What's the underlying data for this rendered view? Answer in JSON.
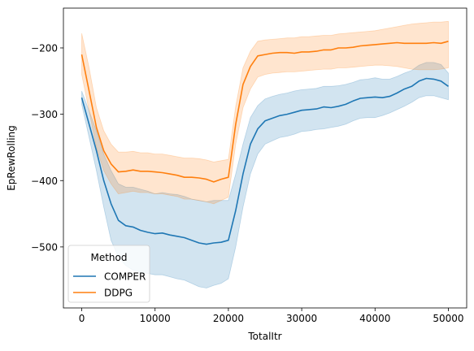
{
  "chart_data": {
    "type": "line",
    "title": "",
    "xlabel": "TotalItr",
    "ylabel": "EpRewRolling",
    "xlim": [
      -2500,
      52500
    ],
    "ylim": [
      -592,
      -140
    ],
    "xticks": [
      0,
      10000,
      20000,
      30000,
      40000,
      50000
    ],
    "xtick_labels": [
      "0",
      "10000",
      "20000",
      "30000",
      "40000",
      "50000"
    ],
    "yticks": [
      -500,
      -400,
      -300,
      -200
    ],
    "ytick_labels": [
      "−500",
      "−400",
      "−300",
      "−200"
    ],
    "grid": false,
    "legend": {
      "title": "Method",
      "placement": "lower-left",
      "entries": [
        "COMPER",
        "DDPG"
      ]
    },
    "series": [
      {
        "name": "COMPER",
        "color": "#1f77b4",
        "band_color": "#1f77b4",
        "band_opacity": 0.2,
        "x": [
          0,
          1000,
          2000,
          3000,
          4000,
          5000,
          6000,
          7000,
          8000,
          9000,
          10000,
          11000,
          12000,
          13000,
          14000,
          15000,
          16000,
          17000,
          18000,
          19000,
          20000,
          21000,
          22000,
          23000,
          24000,
          25000,
          26000,
          27000,
          28000,
          29000,
          30000,
          31000,
          32000,
          33000,
          34000,
          35000,
          36000,
          37000,
          38000,
          39000,
          40000,
          41000,
          42000,
          43000,
          44000,
          45000,
          46000,
          47000,
          48000,
          49000,
          50000
        ],
        "y": [
          -275,
          -315,
          -355,
          -400,
          -435,
          -460,
          -468,
          -470,
          -475,
          -478,
          -480,
          -479,
          -482,
          -484,
          -486,
          -490,
          -494,
          -496,
          -494,
          -493,
          -490,
          -445,
          -390,
          -345,
          -322,
          -310,
          -306,
          -302,
          -300,
          -297,
          -294,
          -293,
          -292,
          -289,
          -290,
          -288,
          -285,
          -280,
          -276,
          -275,
          -274,
          -275,
          -273,
          -268,
          -262,
          -258,
          -250,
          -246,
          -247,
          -250,
          -258
        ],
        "lower": [
          -285,
          -335,
          -385,
          -440,
          -490,
          -515,
          -528,
          -535,
          -538,
          -540,
          -542,
          -542,
          -545,
          -548,
          -550,
          -555,
          -560,
          -562,
          -558,
          -555,
          -548,
          -500,
          -440,
          -390,
          -360,
          -345,
          -340,
          -335,
          -333,
          -330,
          -326,
          -325,
          -323,
          -322,
          -320,
          -318,
          -315,
          -310,
          -306,
          -305,
          -305,
          -302,
          -298,
          -293,
          -288,
          -282,
          -275,
          -272,
          -272,
          -275,
          -278
        ],
        "upper": [
          -265,
          -295,
          -325,
          -360,
          -385,
          -405,
          -410,
          -410,
          -413,
          -416,
          -420,
          -418,
          -420,
          -421,
          -424,
          -428,
          -430,
          -432,
          -430,
          -430,
          -430,
          -390,
          -345,
          -305,
          -287,
          -277,
          -273,
          -270,
          -268,
          -265,
          -263,
          -262,
          -261,
          -258,
          -258,
          -257,
          -255,
          -252,
          -248,
          -247,
          -245,
          -247,
          -247,
          -243,
          -238,
          -234,
          -226,
          -222,
          -222,
          -225,
          -238
        ]
      },
      {
        "name": "DDPG",
        "color": "#ff7f0e",
        "band_color": "#ff7f0e",
        "band_opacity": 0.2,
        "x": [
          0,
          1000,
          2000,
          3000,
          4000,
          5000,
          6000,
          7000,
          8000,
          9000,
          10000,
          11000,
          12000,
          13000,
          14000,
          15000,
          16000,
          17000,
          18000,
          19000,
          20000,
          21000,
          22000,
          23000,
          24000,
          25000,
          26000,
          27000,
          28000,
          29000,
          30000,
          31000,
          32000,
          33000,
          34000,
          35000,
          36000,
          37000,
          38000,
          39000,
          40000,
          41000,
          42000,
          43000,
          44000,
          45000,
          46000,
          47000,
          48000,
          49000,
          50000
        ],
        "y": [
          -210,
          -265,
          -320,
          -355,
          -375,
          -387,
          -386,
          -384,
          -386,
          -386,
          -387,
          -388,
          -390,
          -392,
          -395,
          -395,
          -396,
          -398,
          -402,
          -398,
          -395,
          -315,
          -255,
          -228,
          -212,
          -210,
          -208,
          -207,
          -207,
          -208,
          -206,
          -206,
          -205,
          -203,
          -203,
          -200,
          -200,
          -199,
          -197,
          -196,
          -195,
          -194,
          -193,
          -192,
          -193,
          -193,
          -193,
          -193,
          -192,
          -193,
          -190
        ],
        "lower": [
          -240,
          -295,
          -350,
          -385,
          -405,
          -420,
          -418,
          -416,
          -418,
          -418,
          -420,
          -420,
          -422,
          -424,
          -428,
          -428,
          -430,
          -432,
          -435,
          -430,
          -425,
          -345,
          -290,
          -262,
          -244,
          -240,
          -238,
          -237,
          -236,
          -236,
          -235,
          -234,
          -233,
          -232,
          -232,
          -230,
          -230,
          -229,
          -228,
          -227,
          -226,
          -226,
          -227,
          -228,
          -230,
          -232,
          -233,
          -233,
          -233,
          -232,
          -230
        ],
        "upper": [
          -178,
          -230,
          -290,
          -325,
          -345,
          -357,
          -357,
          -356,
          -358,
          -358,
          -360,
          -360,
          -362,
          -364,
          -366,
          -366,
          -367,
          -369,
          -372,
          -370,
          -368,
          -288,
          -230,
          -205,
          -190,
          -188,
          -187,
          -186,
          -185,
          -185,
          -183,
          -183,
          -182,
          -181,
          -181,
          -179,
          -178,
          -177,
          -176,
          -175,
          -174,
          -172,
          -170,
          -168,
          -166,
          -164,
          -163,
          -162,
          -161,
          -161,
          -160
        ]
      }
    ]
  }
}
